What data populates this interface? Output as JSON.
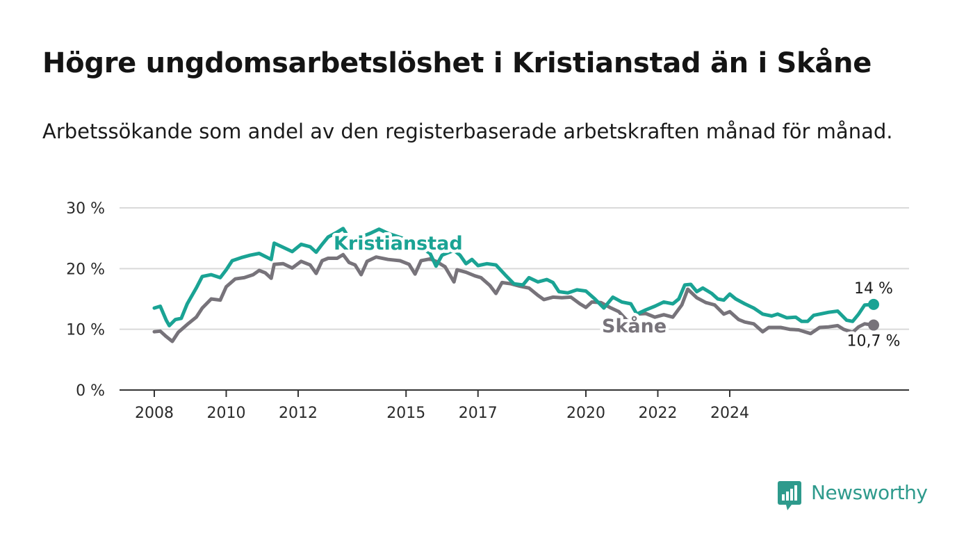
{
  "title": "Högre ungdomsarbetslöshet i Kristianstad än i Skåne",
  "subtitle": "Arbetssökande som andel av den registerbaserade arbetskraften månad för månad.",
  "brand": {
    "name": "Newsworthy",
    "icon": "newsworthy-logo-icon"
  },
  "colors": {
    "kristianstad": "#1aa394",
    "skane": "#77737a",
    "grid": "#d9d9d9",
    "axis": "#333333"
  },
  "chart_data": {
    "type": "line",
    "x_ticks": [
      "2008",
      "2010",
      "2012",
      "2015",
      "2017",
      "2020",
      "2022",
      "2024"
    ],
    "y_ticks": [
      "0 %",
      "10 %",
      "20 %",
      "30 %"
    ],
    "ylim": [
      0,
      30
    ],
    "grid": true,
    "series": [
      {
        "name": "Kristianstad",
        "color": "#1aa394",
        "end_label": "14 %",
        "points": [
          [
            "2008-01",
            13.5
          ],
          [
            "2008-03",
            13.8
          ],
          [
            "2008-05",
            11.5
          ],
          [
            "2008-06",
            10.6
          ],
          [
            "2008-08",
            11.6
          ],
          [
            "2008-10",
            11.8
          ],
          [
            "2008-12",
            14.2
          ],
          [
            "2009-03",
            16.8
          ],
          [
            "2009-05",
            18.7
          ],
          [
            "2009-08",
            19.0
          ],
          [
            "2009-11",
            18.5
          ],
          [
            "2010-01",
            19.8
          ],
          [
            "2010-03",
            21.3
          ],
          [
            "2010-06",
            21.8
          ],
          [
            "2010-09",
            22.2
          ],
          [
            "2010-12",
            22.5
          ],
          [
            "2011-02",
            22.0
          ],
          [
            "2011-04",
            21.5
          ],
          [
            "2011-05",
            24.2
          ],
          [
            "2011-08",
            23.5
          ],
          [
            "2011-11",
            22.8
          ],
          [
            "2012-02",
            24.0
          ],
          [
            "2012-05",
            23.6
          ],
          [
            "2012-07",
            22.7
          ],
          [
            "2012-09",
            24.0
          ],
          [
            "2012-11",
            25.2
          ],
          [
            "2013-02",
            26.0
          ],
          [
            "2013-04",
            26.6
          ],
          [
            "2013-06",
            25.0
          ],
          [
            "2013-08",
            24.8
          ],
          [
            "2014-01",
            25.8
          ],
          [
            "2014-04",
            26.5
          ],
          [
            "2014-07",
            25.8
          ],
          [
            "2015-01",
            24.8
          ],
          [
            "2015-06",
            23.5
          ],
          [
            "2015-09",
            22.5
          ],
          [
            "2015-11",
            20.4
          ],
          [
            "2016-01",
            22.2
          ],
          [
            "2016-05",
            23.0
          ],
          [
            "2016-07",
            22.2
          ],
          [
            "2016-09",
            20.8
          ],
          [
            "2016-11",
            21.5
          ],
          [
            "2017-01",
            20.5
          ],
          [
            "2017-04",
            20.8
          ],
          [
            "2017-07",
            20.6
          ],
          [
            "2017-10",
            19.0
          ],
          [
            "2018-01",
            17.5
          ],
          [
            "2018-04",
            17.3
          ],
          [
            "2018-06",
            18.5
          ],
          [
            "2018-09",
            17.8
          ],
          [
            "2018-12",
            18.2
          ],
          [
            "2019-02",
            17.7
          ],
          [
            "2019-04",
            16.2
          ],
          [
            "2019-07",
            16.0
          ],
          [
            "2019-10",
            16.5
          ],
          [
            "2020-01",
            16.3
          ],
          [
            "2020-04",
            15.0
          ],
          [
            "2020-07",
            13.5
          ],
          [
            "2020-10",
            15.3
          ],
          [
            "2021-01",
            14.5
          ],
          [
            "2021-04",
            14.2
          ],
          [
            "2021-06",
            12.5
          ],
          [
            "2021-09",
            13.2
          ],
          [
            "2021-12",
            13.8
          ],
          [
            "2022-03",
            14.5
          ],
          [
            "2022-06",
            14.2
          ],
          [
            "2022-08",
            15.0
          ],
          [
            "2022-10",
            17.3
          ],
          [
            "2022-12",
            17.4
          ],
          [
            "2023-02",
            16.2
          ],
          [
            "2023-04",
            16.8
          ],
          [
            "2023-07",
            15.9
          ],
          [
            "2023-09",
            15.0
          ],
          [
            "2023-11",
            14.8
          ],
          [
            "2024-01",
            15.8
          ],
          [
            "2024-03",
            15.0
          ],
          [
            "2024-06",
            14.2
          ],
          [
            "2024-09",
            13.5
          ],
          [
            "2024-12",
            12.5
          ],
          [
            "2025-03",
            12.2
          ],
          [
            "2025-05",
            12.5
          ],
          [
            "2025-08",
            11.9
          ],
          [
            "2025-11",
            12.0
          ],
          [
            "2026-01",
            11.3
          ],
          [
            "2026-03",
            11.3
          ],
          [
            "2026-05",
            12.3
          ],
          [
            "2026-07",
            12.5
          ],
          [
            "2026-10",
            12.8
          ],
          [
            "2027-01",
            13.0
          ],
          [
            "2027-04",
            11.5
          ],
          [
            "2027-06",
            11.3
          ],
          [
            "2027-08",
            12.5
          ],
          [
            "2027-10",
            14.0
          ],
          [
            "2028-01",
            14.1
          ]
        ]
      },
      {
        "name": "Skåne",
        "color": "#77737a",
        "end_label": "10,7 %",
        "points": [
          [
            "2008-01",
            9.6
          ],
          [
            "2008-03",
            9.7
          ],
          [
            "2008-05",
            8.8
          ],
          [
            "2008-07",
            8.0
          ],
          [
            "2008-09",
            9.5
          ],
          [
            "2008-12",
            10.8
          ],
          [
            "2009-03",
            12.0
          ],
          [
            "2009-05",
            13.5
          ],
          [
            "2009-08",
            15.0
          ],
          [
            "2009-11",
            14.8
          ],
          [
            "2010-01",
            17.0
          ],
          [
            "2010-04",
            18.3
          ],
          [
            "2010-07",
            18.5
          ],
          [
            "2010-10",
            19.0
          ],
          [
            "2010-12",
            19.7
          ],
          [
            "2011-02",
            19.3
          ],
          [
            "2011-04",
            18.4
          ],
          [
            "2011-05",
            20.7
          ],
          [
            "2011-08",
            20.8
          ],
          [
            "2011-11",
            20.1
          ],
          [
            "2012-02",
            21.2
          ],
          [
            "2012-05",
            20.6
          ],
          [
            "2012-07",
            19.2
          ],
          [
            "2012-09",
            21.3
          ],
          [
            "2012-11",
            21.7
          ],
          [
            "2013-02",
            21.7
          ],
          [
            "2013-04",
            22.3
          ],
          [
            "2013-06",
            21.0
          ],
          [
            "2013-08",
            20.6
          ],
          [
            "2013-10",
            19.0
          ],
          [
            "2013-12",
            21.2
          ],
          [
            "2014-03",
            21.9
          ],
          [
            "2014-07",
            21.5
          ],
          [
            "2014-11",
            21.3
          ],
          [
            "2015-02",
            20.7
          ],
          [
            "2015-04",
            19.1
          ],
          [
            "2015-06",
            21.3
          ],
          [
            "2015-09",
            21.6
          ],
          [
            "2015-11",
            21.2
          ],
          [
            "2016-02",
            20.3
          ],
          [
            "2016-05",
            17.8
          ],
          [
            "2016-06",
            19.8
          ],
          [
            "2016-09",
            19.4
          ],
          [
            "2016-12",
            18.8
          ],
          [
            "2017-02",
            18.5
          ],
          [
            "2017-05",
            17.2
          ],
          [
            "2017-07",
            15.9
          ],
          [
            "2017-09",
            17.7
          ],
          [
            "2017-12",
            17.5
          ],
          [
            "2018-03",
            17.1
          ],
          [
            "2018-06",
            16.8
          ],
          [
            "2018-09",
            15.6
          ],
          [
            "2018-11",
            14.9
          ],
          [
            "2019-02",
            15.3
          ],
          [
            "2019-05",
            15.2
          ],
          [
            "2019-08",
            15.3
          ],
          [
            "2019-11",
            14.2
          ],
          [
            "2020-01",
            13.6
          ],
          [
            "2020-03",
            14.5
          ],
          [
            "2020-06",
            14.4
          ],
          [
            "2020-09",
            13.6
          ],
          [
            "2020-12",
            12.9
          ],
          [
            "2021-03",
            11.3
          ],
          [
            "2021-06",
            12.5
          ],
          [
            "2021-09",
            12.6
          ],
          [
            "2021-12",
            12.0
          ],
          [
            "2022-03",
            12.4
          ],
          [
            "2022-06",
            12.0
          ],
          [
            "2022-09",
            14.0
          ],
          [
            "2022-11",
            16.6
          ],
          [
            "2023-02",
            15.2
          ],
          [
            "2023-05",
            14.4
          ],
          [
            "2023-08",
            14.0
          ],
          [
            "2023-11",
            12.5
          ],
          [
            "2024-01",
            12.9
          ],
          [
            "2024-04",
            11.6
          ],
          [
            "2024-06",
            11.2
          ],
          [
            "2024-09",
            10.9
          ],
          [
            "2024-12",
            9.6
          ],
          [
            "2025-02",
            10.3
          ],
          [
            "2025-06",
            10.3
          ],
          [
            "2025-09",
            10.0
          ],
          [
            "2025-12",
            9.9
          ],
          [
            "2026-02",
            9.6
          ],
          [
            "2026-04",
            9.3
          ],
          [
            "2026-07",
            10.3
          ],
          [
            "2026-10",
            10.4
          ],
          [
            "2027-01",
            10.6
          ],
          [
            "2027-03",
            10.0
          ],
          [
            "2027-06",
            9.5
          ],
          [
            "2027-08",
            10.4
          ],
          [
            "2027-10",
            10.9
          ],
          [
            "2028-01",
            10.7
          ]
        ]
      }
    ]
  }
}
